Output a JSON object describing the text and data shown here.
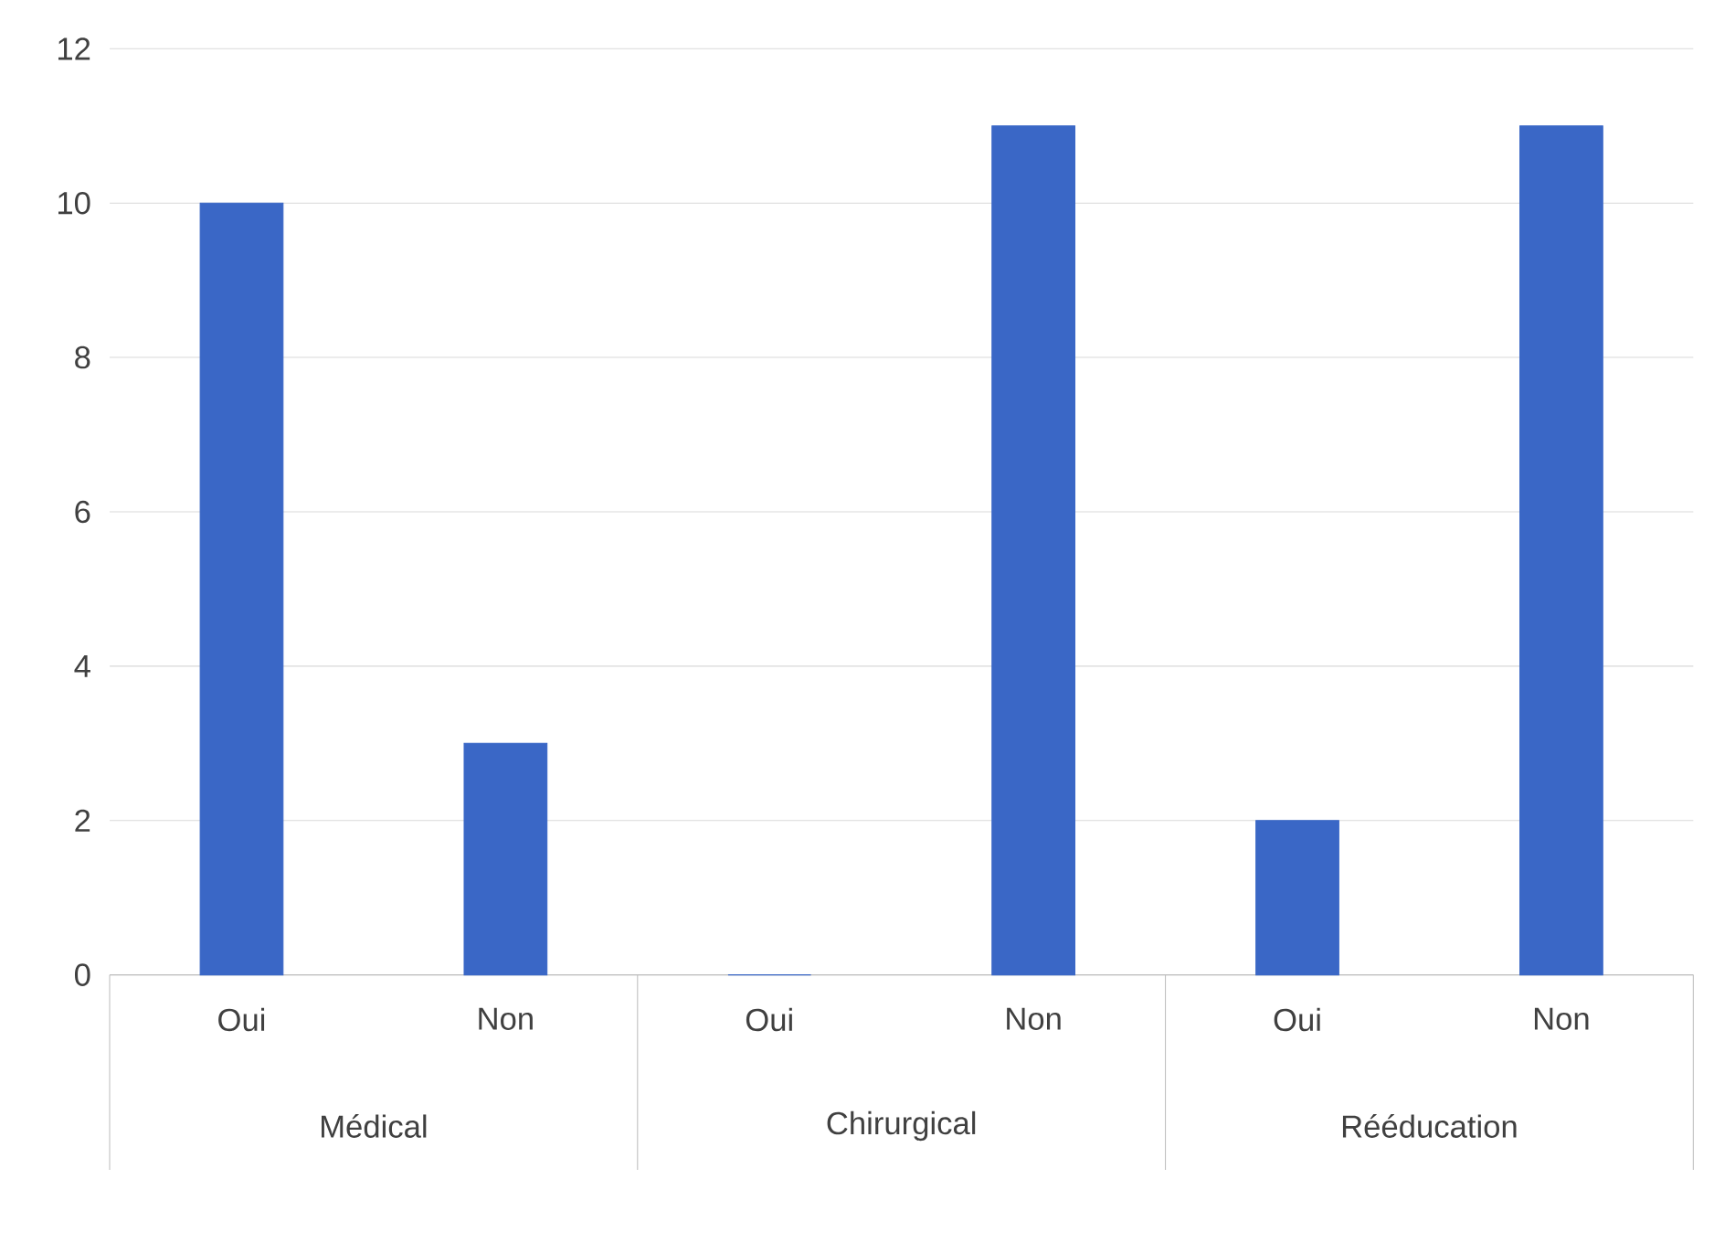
{
  "chart_data": {
    "type": "bar",
    "categories": [
      "Oui",
      "Non",
      "Oui",
      "Non",
      "Oui",
      "Non"
    ],
    "values": [
      10,
      3,
      0,
      11,
      2,
      11
    ],
    "color": "#3a67c6",
    "annotations": [
      "Médical",
      "Chirurgical",
      "Rééducation"
    ],
    "ylim": [
      0,
      12
    ],
    "yticks": [
      0,
      2,
      4,
      6,
      8,
      10,
      12
    ],
    "grid": "y"
  }
}
